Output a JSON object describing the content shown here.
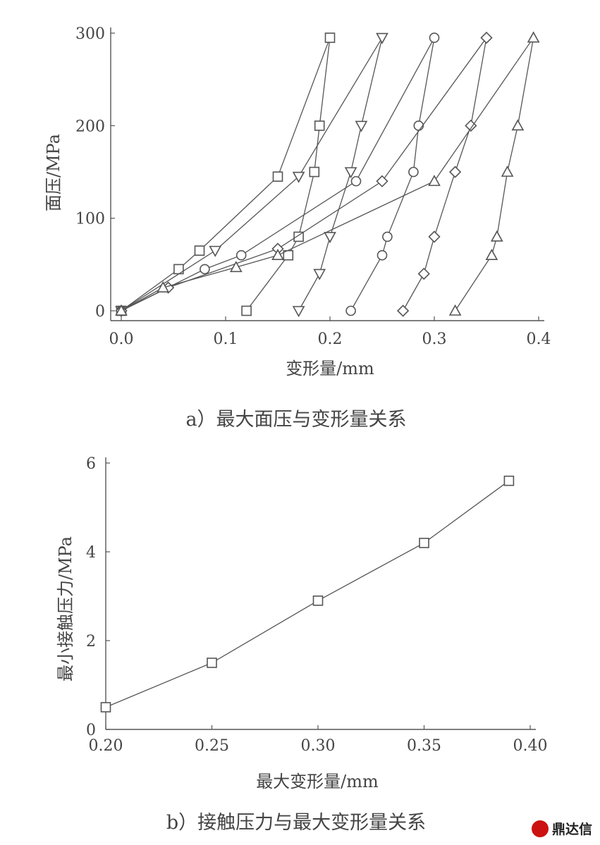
{
  "chart_data": [
    {
      "type": "line",
      "caption": "a）最大面压与变形量关系",
      "xlabel": "变形量/mm",
      "ylabel": "面压/MPa",
      "xlim": [
        0.0,
        0.4
      ],
      "ylim": [
        0,
        300
      ],
      "xticks": [
        "0.0",
        "0.1",
        "0.2",
        "0.3",
        "0.4"
      ],
      "yticks": [
        "0",
        "100",
        "200",
        "300"
      ],
      "grid": false,
      "series": [
        {
          "marker": "square",
          "x": [
            0.0,
            0.055,
            0.075,
            0.15,
            0.2,
            0.19,
            0.185,
            0.17,
            0.16,
            0.12
          ],
          "y": [
            0,
            45,
            65,
            145,
            295,
            200,
            150,
            80,
            60,
            0
          ]
        },
        {
          "marker": "triangle-down",
          "x": [
            0.0,
            0.09,
            0.17,
            0.25,
            0.23,
            0.22,
            0.2,
            0.19,
            0.17
          ],
          "y": [
            0,
            65,
            145,
            295,
            200,
            150,
            80,
            40,
            0
          ]
        },
        {
          "marker": "circle",
          "x": [
            0.0,
            0.08,
            0.115,
            0.225,
            0.3,
            0.285,
            0.28,
            0.255,
            0.25,
            0.22
          ],
          "y": [
            0,
            45,
            60,
            140,
            295,
            200,
            150,
            80,
            60,
            0
          ]
        },
        {
          "marker": "diamond",
          "x": [
            0.0,
            0.045,
            0.15,
            0.25,
            0.35,
            0.335,
            0.32,
            0.3,
            0.29,
            0.27
          ],
          "y": [
            0,
            25,
            67,
            140,
            295,
            200,
            150,
            80,
            40,
            0
          ]
        },
        {
          "marker": "triangle-up",
          "x": [
            0.0,
            0.04,
            0.11,
            0.15,
            0.3,
            0.395,
            0.38,
            0.37,
            0.36,
            0.355,
            0.32
          ],
          "y": [
            0,
            25,
            47,
            60,
            140,
            295,
            200,
            150,
            80,
            60,
            0
          ]
        }
      ]
    },
    {
      "type": "line",
      "caption": "b）接触压力与最大变形量关系",
      "xlabel": "最大变形量/mm",
      "ylabel": "最小接触压力/MPa",
      "xlim": [
        0.2,
        0.4
      ],
      "ylim": [
        0,
        6
      ],
      "xticks": [
        "0.20",
        "0.25",
        "0.30",
        "0.35",
        "0.40"
      ],
      "yticks": [
        "0",
        "2",
        "4",
        "6"
      ],
      "grid": false,
      "series": [
        {
          "marker": "square",
          "x": [
            0.2,
            0.25,
            0.3,
            0.35,
            0.39
          ],
          "y": [
            0.5,
            1.5,
            2.9,
            4.2,
            5.6
          ]
        }
      ]
    }
  ],
  "watermark": {
    "text": "鼎达信",
    "color": "#cc1111"
  }
}
